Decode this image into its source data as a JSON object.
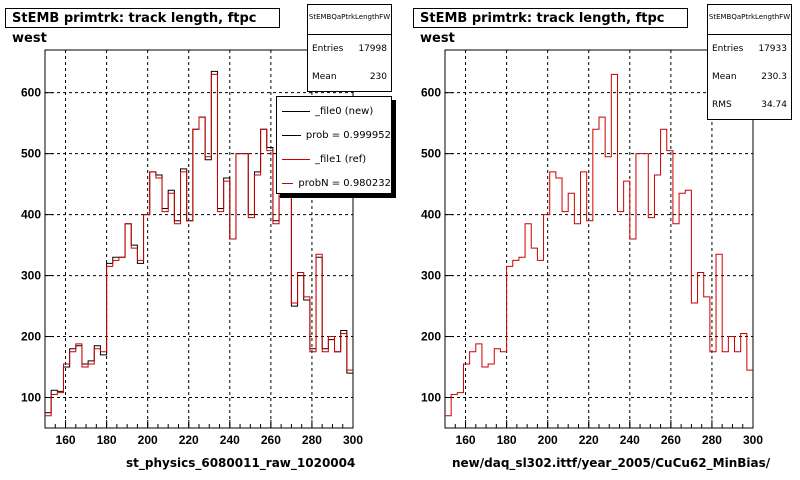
{
  "left": {
    "title": "StEMB primtrk: track length, ftpc west",
    "stats": {
      "name": "StEMBQaPtrkLengthFW",
      "rows": [
        {
          "label": "Entries",
          "value": "17998"
        },
        {
          "label": "Mean",
          "value": "230"
        }
      ]
    },
    "legend": [
      {
        "label": "_file0 (new)",
        "color": "#000000"
      },
      {
        "label": "prob = 0.999952",
        "color": "#000000"
      },
      {
        "label": "_file1 (ref)",
        "color": "#cc0000"
      },
      {
        "label": "probN = 0.980232",
        "color": "#cc0000"
      }
    ],
    "xtitle": "st_physics_6080011_raw_1020004"
  },
  "right": {
    "title": "StEMB primtrk: track length, ftpc west",
    "stats": {
      "name": "StEMBQaPtrkLengthFW",
      "rows": [
        {
          "label": "Entries",
          "value": "17933"
        },
        {
          "label": "Mean",
          "value": "230.3"
        },
        {
          "label": "RMS",
          "value": "34.74"
        }
      ]
    },
    "xtitle": "new/daq_sl302.ittf/year_2005/CuCu62_MinBias/"
  },
  "colors": {
    "new": "#000000",
    "ref": "#cc0000",
    "grid": "#000000"
  },
  "chart_data": [
    {
      "type": "histogram",
      "title": "StEMB primtrk: track length, ftpc west",
      "xlabel": "st_physics_6080011_raw_1020004",
      "xlim": [
        150,
        300
      ],
      "ylim": [
        50,
        670
      ],
      "xticks": [
        160,
        180,
        200,
        220,
        240,
        260,
        280,
        300
      ],
      "yticks": [
        100,
        200,
        300,
        400,
        500,
        600
      ],
      "grid": true,
      "legend_position": "top-right",
      "bin_edges": [
        150,
        153,
        156,
        159,
        162,
        165,
        168,
        171,
        174,
        177,
        180,
        183,
        186,
        189,
        192,
        195,
        198,
        201,
        204,
        207,
        210,
        213,
        216,
        219,
        222,
        225,
        228,
        231,
        234,
        237,
        240,
        243,
        246,
        249,
        252,
        255,
        258,
        261,
        264,
        267,
        270,
        273,
        276,
        279,
        282,
        285,
        288,
        291,
        294,
        297,
        300
      ],
      "series": [
        {
          "name": "_file0 (new)",
          "color": "#000000",
          "values": [
            75,
            112,
            110,
            150,
            180,
            185,
            155,
            160,
            185,
            170,
            320,
            330,
            330,
            385,
            350,
            320,
            400,
            470,
            465,
            410,
            440,
            390,
            475,
            390,
            540,
            560,
            490,
            635,
            410,
            460,
            360,
            500,
            500,
            400,
            470,
            540,
            510,
            390,
            430,
            440,
            250,
            300,
            260,
            180,
            330,
            180,
            195,
            175,
            210,
            140
          ]
        },
        {
          "name": "_file1 (ref)",
          "color": "#cc0000",
          "values": [
            70,
            105,
            108,
            155,
            175,
            188,
            150,
            155,
            180,
            175,
            315,
            325,
            330,
            385,
            345,
            325,
            400,
            470,
            460,
            405,
            435,
            385,
            470,
            390,
            540,
            560,
            495,
            630,
            405,
            455,
            360,
            500,
            500,
            395,
            465,
            540,
            505,
            385,
            435,
            440,
            255,
            305,
            265,
            175,
            335,
            175,
            200,
            175,
            205,
            145
          ]
        }
      ]
    },
    {
      "type": "histogram",
      "title": "StEMB primtrk: track length, ftpc west",
      "xlabel": "new/daq_sl302.ittf/year_2005/CuCu62_MinBias/",
      "xlim": [
        150,
        300
      ],
      "ylim": [
        50,
        670
      ],
      "xticks": [
        160,
        180,
        200,
        220,
        240,
        260,
        280,
        300
      ],
      "yticks": [
        100,
        200,
        300,
        400,
        500,
        600
      ],
      "grid": true,
      "bin_edges": [
        150,
        153,
        156,
        159,
        162,
        165,
        168,
        171,
        174,
        177,
        180,
        183,
        186,
        189,
        192,
        195,
        198,
        201,
        204,
        207,
        210,
        213,
        216,
        219,
        222,
        225,
        228,
        231,
        234,
        237,
        240,
        243,
        246,
        249,
        252,
        255,
        258,
        261,
        264,
        267,
        270,
        273,
        276,
        279,
        282,
        285,
        288,
        291,
        294,
        297,
        300
      ],
      "series": [
        {
          "name": "",
          "color": "#cc0000",
          "values": [
            70,
            105,
            108,
            155,
            175,
            188,
            150,
            155,
            180,
            175,
            315,
            325,
            330,
            385,
            345,
            325,
            400,
            470,
            460,
            405,
            435,
            385,
            470,
            390,
            540,
            560,
            495,
            630,
            405,
            455,
            360,
            500,
            500,
            395,
            465,
            540,
            505,
            385,
            435,
            440,
            255,
            305,
            265,
            175,
            335,
            175,
            200,
            175,
            205,
            145
          ]
        }
      ]
    }
  ]
}
